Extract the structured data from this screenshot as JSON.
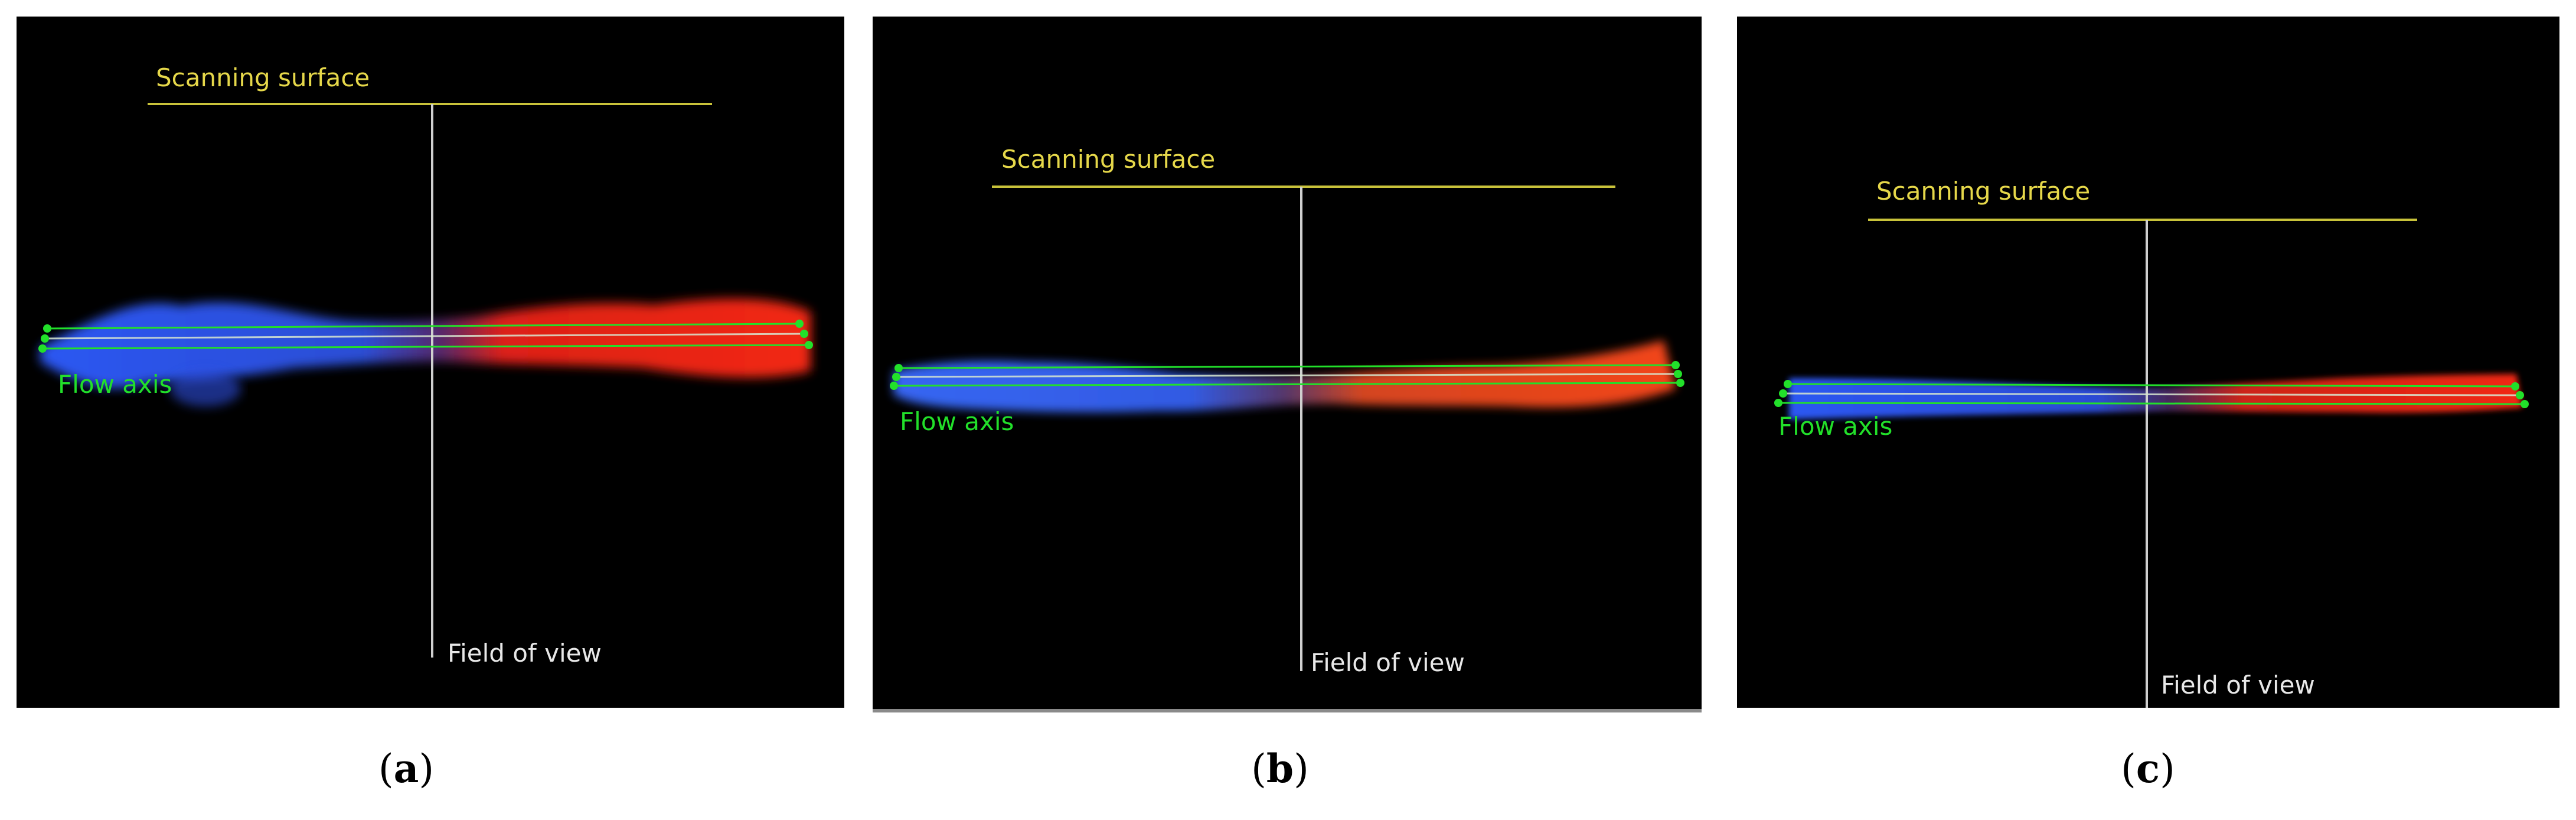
{
  "panels": [
    {
      "id": "a",
      "scanning_surface_label": "Scanning surface",
      "flow_axis_label": "Flow axis",
      "field_of_view_label": "Field of view",
      "caption_open": "(",
      "caption_letter": "a",
      "caption_close": ")"
    },
    {
      "id": "b",
      "scanning_surface_label": "Scanning surface",
      "flow_axis_label": "Flow axis",
      "field_of_view_label": "Field of view",
      "caption_open": "(",
      "caption_letter": "b",
      "caption_close": ")"
    },
    {
      "id": "c",
      "scanning_surface_label": "Scanning surface",
      "flow_axis_label": "Flow axis",
      "field_of_view_label": "Field of view",
      "caption_open": "(",
      "caption_letter": "c",
      "caption_close": ")"
    }
  ],
  "colors": {
    "background": "#000000",
    "scanning_surface": "#c8c23a",
    "field_of_view_line": "#cfcfcf",
    "flow_axis": "#22e02a",
    "inflow_blue": "#2f5cff",
    "outflow_red": "#ff2a14"
  }
}
